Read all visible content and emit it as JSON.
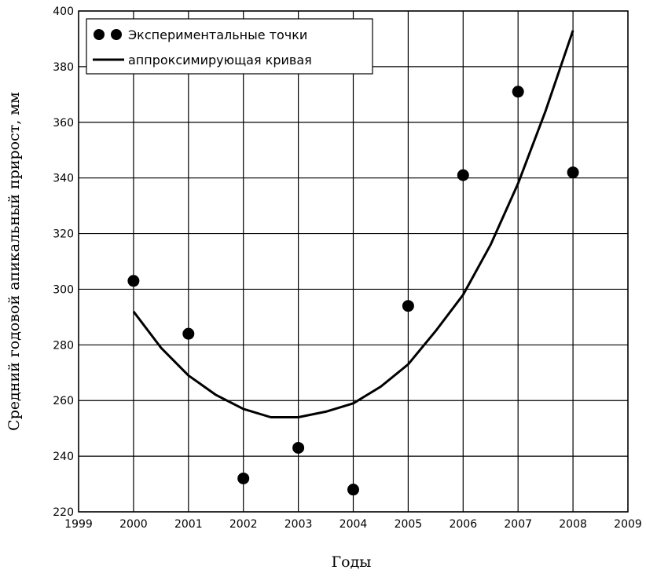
{
  "chart_data": {
    "type": "scatter",
    "title": "",
    "xlabel": "Годы",
    "ylabel": "Средний годовой апикальный прирост, мм",
    "xlim": [
      1999,
      2009
    ],
    "ylim": [
      220,
      400
    ],
    "xticks": [
      1999,
      2000,
      2001,
      2002,
      2003,
      2004,
      2005,
      2006,
      2007,
      2008,
      2009
    ],
    "yticks": [
      220,
      240,
      260,
      280,
      300,
      320,
      340,
      360,
      380,
      400
    ],
    "grid": true,
    "legend_position": "top-left",
    "series": [
      {
        "name": "Экспериментальные точки",
        "kind": "points",
        "x": [
          2000,
          2001,
          2002,
          2003,
          2004,
          2005,
          2006,
          2007,
          2008
        ],
        "y": [
          303,
          284,
          232,
          243,
          228,
          294,
          341,
          371,
          342
        ]
      },
      {
        "name": "аппроксимирующая кривая",
        "kind": "line",
        "x": [
          2000,
          2000.5,
          2001,
          2001.5,
          2002,
          2002.5,
          2003,
          2003.5,
          2004,
          2004.5,
          2005,
          2005.5,
          2006,
          2006.5,
          2007,
          2007.5,
          2008
        ],
        "y": [
          292,
          279,
          269,
          262,
          257,
          254,
          254,
          256,
          259,
          265,
          273,
          285,
          298,
          316,
          338,
          364,
          393
        ]
      }
    ]
  },
  "colors": {
    "ink": "#000000",
    "background": "#ffffff"
  }
}
